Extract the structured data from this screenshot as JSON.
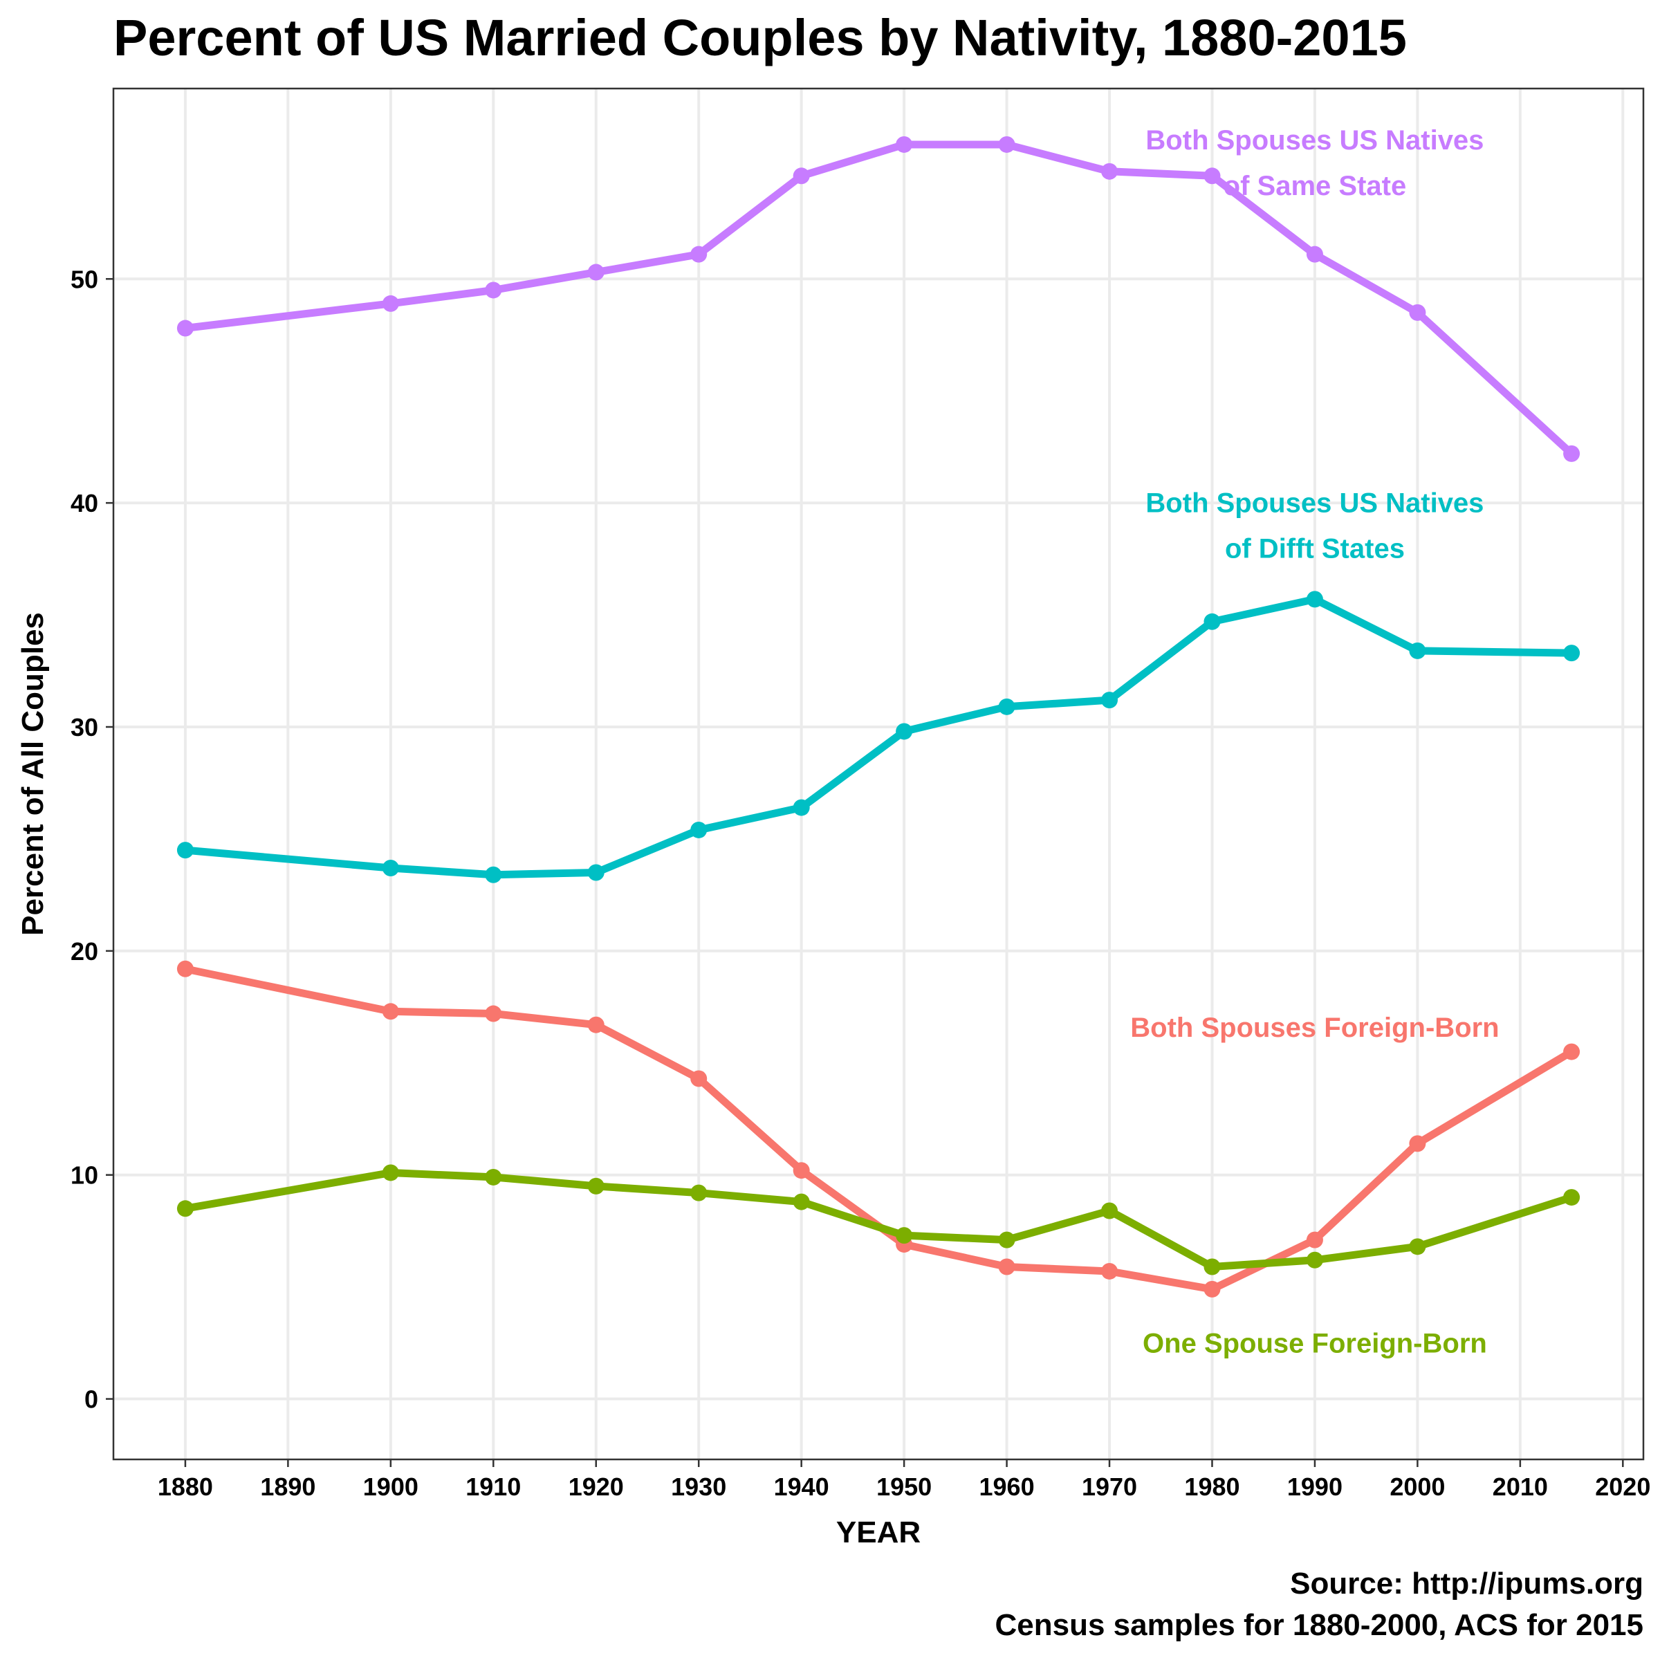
{
  "chart_data": {
    "type": "line",
    "title": "Percent of US Married Couples by Nativity, 1880-2015",
    "xlabel": "YEAR",
    "ylabel": "Percent of All Couples",
    "xlim": [
      1873,
      2022
    ],
    "ylim": [
      -2.7,
      58.5
    ],
    "x_ticks": [
      1880,
      1890,
      1900,
      1910,
      1920,
      1930,
      1940,
      1950,
      1960,
      1970,
      1980,
      1990,
      2000,
      2010,
      2020
    ],
    "y_ticks": [
      0,
      10,
      20,
      30,
      40,
      50
    ],
    "grid": true,
    "legend": "direct-labels",
    "x": [
      1880,
      1900,
      1910,
      1920,
      1930,
      1940,
      1950,
      1960,
      1970,
      1980,
      1990,
      2000,
      2015
    ],
    "series": [
      {
        "name": "Both Spouses US Natives of Same State",
        "label_lines": [
          "Both Spouses US Natives",
          "of Same State"
        ],
        "color": "#c77cff",
        "values": [
          47.8,
          48.9,
          49.5,
          50.3,
          51.1,
          54.6,
          56.0,
          56.0,
          54.8,
          54.6,
          51.1,
          48.5,
          42.2
        ],
        "label_anchor": [
          1990,
          55.2
        ]
      },
      {
        "name": "Both Spouses US Natives of Difft States",
        "label_lines": [
          "Both Spouses US Natives",
          "of Difft States"
        ],
        "color": "#00bfc4",
        "values": [
          24.5,
          23.7,
          23.4,
          23.5,
          25.4,
          26.4,
          29.8,
          30.9,
          31.2,
          34.7,
          35.7,
          33.4,
          33.3
        ],
        "label_anchor": [
          1990,
          39.0
        ]
      },
      {
        "name": "Both Spouses Foreign-Born",
        "label_lines": [
          "Both Spouses Foreign-Born"
        ],
        "color": "#f8766d",
        "values": [
          19.2,
          17.3,
          17.2,
          16.7,
          14.3,
          10.2,
          6.9,
          5.9,
          5.7,
          4.9,
          7.1,
          11.4,
          15.5
        ],
        "label_anchor": [
          1990,
          16.6
        ]
      },
      {
        "name": "One Spouse Foreign-Born",
        "label_lines": [
          "One Spouse Foreign-Born"
        ],
        "color": "#7cae00",
        "values": [
          8.5,
          10.1,
          9.9,
          9.5,
          9.2,
          8.8,
          7.3,
          7.1,
          8.4,
          5.9,
          6.2,
          6.8,
          9.0
        ],
        "label_anchor": [
          1990,
          2.5
        ]
      }
    ],
    "caption_lines": [
      "Source: http://ipums.org",
      "Census samples for 1880-2000, ACS for 2015"
    ]
  }
}
